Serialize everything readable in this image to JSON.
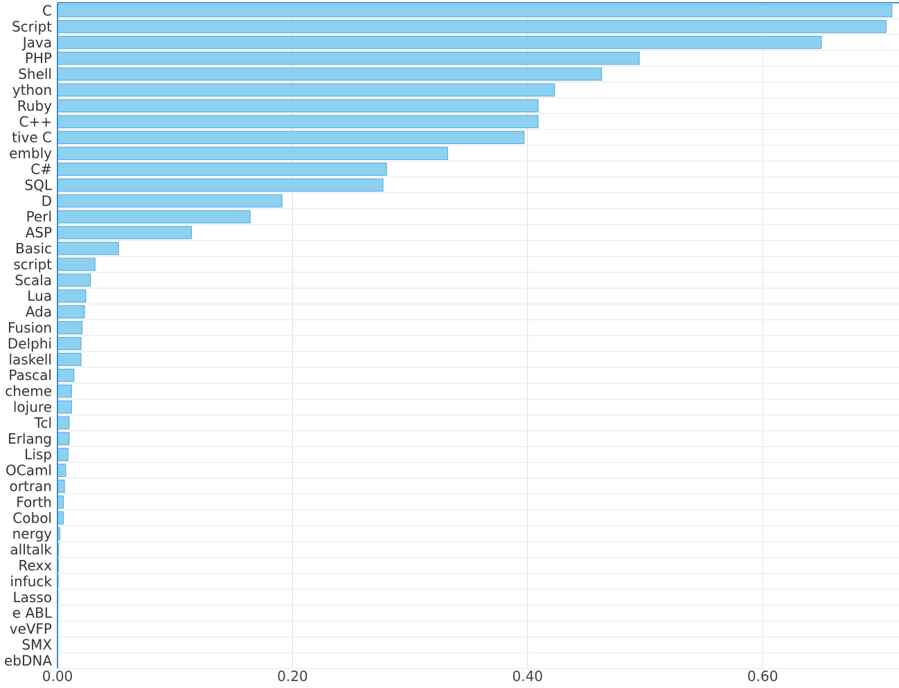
{
  "chart_data": {
    "type": "bar",
    "orientation": "horizontal",
    "title": "",
    "xlabel": "",
    "ylabel": "",
    "categories": [
      "C",
      "Script",
      "Java",
      "PHP",
      "Shell",
      "ython",
      "Ruby",
      "C++",
      "tive C",
      "embly",
      "C#",
      "SQL",
      "D",
      "Perl",
      "ASP",
      "Basic",
      "script",
      "Scala",
      "Lua",
      "Ada",
      "Fusion",
      "Delphi",
      "laskell",
      "Pascal",
      "cheme",
      "lojure",
      "Tcl",
      "Erlang",
      "Lisp",
      "OCaml",
      "ortran",
      "Forth",
      "Cobol",
      "nergy",
      "alltalk",
      "Rexx",
      "infuck",
      "Lasso",
      "e ABL",
      "veVFP",
      "SMX",
      "ebDNA"
    ],
    "values": [
      0.71,
      0.705,
      0.65,
      0.495,
      0.463,
      0.423,
      0.409,
      0.409,
      0.397,
      0.332,
      0.28,
      0.277,
      0.191,
      0.164,
      0.114,
      0.052,
      0.032,
      0.028,
      0.024,
      0.023,
      0.021,
      0.02,
      0.02,
      0.014,
      0.012,
      0.012,
      0.01,
      0.01,
      0.009,
      0.007,
      0.006,
      0.005,
      0.005,
      0.002,
      0.001,
      0.0008,
      0.0006,
      0.0005,
      0.0004,
      0.0003,
      0.0002,
      0.0001
    ],
    "xlim": [
      0,
      0.716
    ],
    "xticks": [
      "0.00",
      "0.20",
      "0.40",
      "0.60"
    ],
    "xtick_values": [
      0,
      0.2,
      0.4,
      0.6
    ],
    "grid": true,
    "legend": "none",
    "colors": {
      "bar_fill": "#8dd0f2",
      "bar_stroke": "#4fa8dc",
      "axis": "#3a8fca"
    }
  }
}
